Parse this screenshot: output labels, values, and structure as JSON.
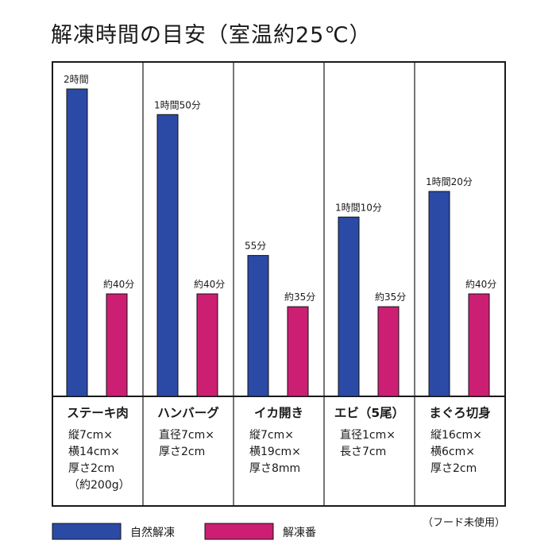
{
  "title": "解凍時間の目安（室温約25℃）",
  "note": "（フード未使用）",
  "colors": {
    "natural": "#2b4aa6",
    "thaw": "#cc1f73",
    "frame": "#1a1a1a"
  },
  "chart_data": {
    "type": "bar",
    "title": "解凍時間の目安（室温約25℃）",
    "unit": "分",
    "categories": [
      "ステーキ肉",
      "ハンバーグ",
      "イカ開き",
      "エビ（5尾）",
      "まぐろ切身"
    ],
    "descriptions": [
      [
        "縦7cm×",
        "横14cm×",
        "厚さ2cm",
        "（約200g）"
      ],
      [
        "直径7cm×",
        "厚さ2cm"
      ],
      [
        "縦7cm×",
        "横19cm×",
        "厚さ8mm"
      ],
      [
        "直径1cm×",
        "長さ7cm"
      ],
      [
        "縦16cm×",
        "横6cm×",
        "厚さ2cm"
      ]
    ],
    "series": [
      {
        "name": "自然解凍",
        "values": [
          120,
          110,
          55,
          70,
          80
        ],
        "labels": [
          "2時間",
          "1時間50分",
          "55分",
          "1時間10分",
          "1時間20分"
        ]
      },
      {
        "name": "解凍番",
        "values": [
          40,
          40,
          35,
          35,
          40
        ],
        "labels": [
          "約40分",
          "約40分",
          "約35分",
          "約35分",
          "約40分"
        ]
      }
    ],
    "ylim": [
      0,
      120
    ],
    "legend": "bottom",
    "grid": false
  }
}
